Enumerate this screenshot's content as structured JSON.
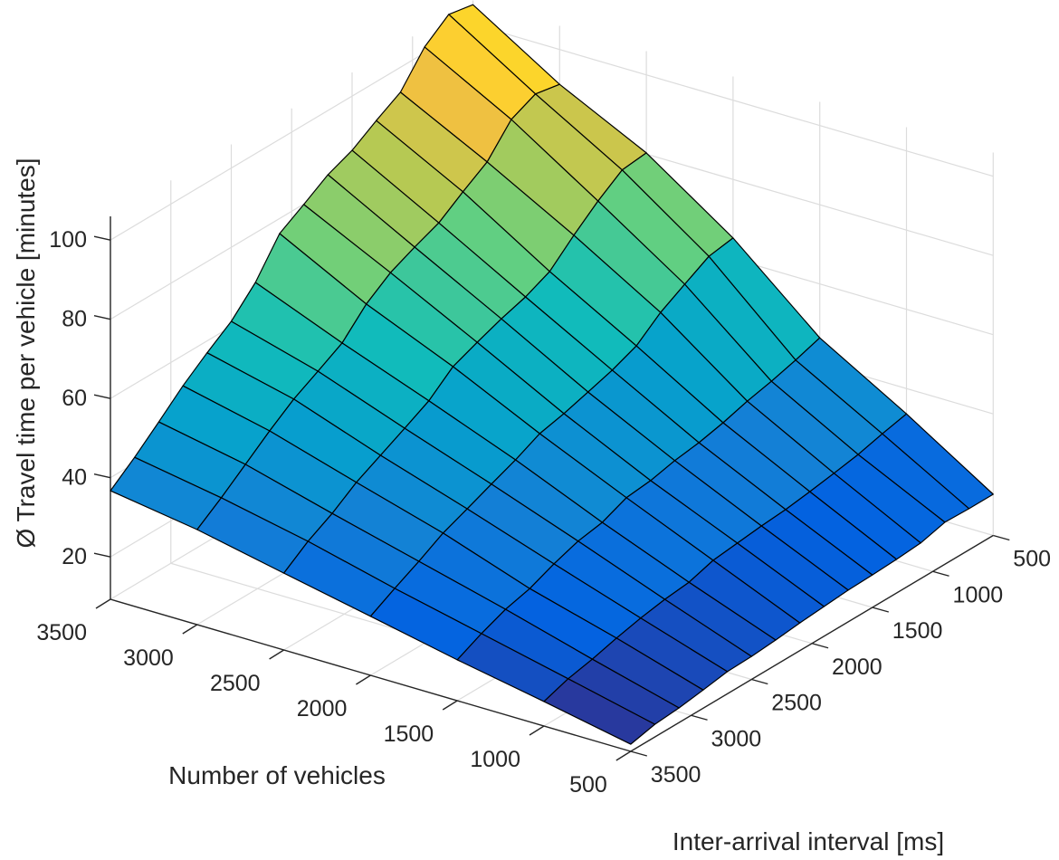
{
  "figure": {
    "zlabel": "Ø Travel time per vehicle [minutes]",
    "xlabel": "Number of vehicles",
    "ylabel": "Inter-arrival interval [ms]"
  },
  "chart_data": {
    "type": "surface",
    "title": "",
    "xlabel": "Number of vehicles",
    "ylabel": "Inter-arrival interval [ms]",
    "zlabel": "Ø Travel time per vehicle [minutes]",
    "x_ticks": [
      500,
      1000,
      1500,
      2000,
      2500,
      3000,
      3500
    ],
    "y_ticks": [
      500,
      1000,
      1500,
      2000,
      2500,
      3000,
      3500
    ],
    "z_ticks": [
      20,
      40,
      60,
      80,
      100
    ],
    "xlim": [
      500,
      3500
    ],
    "ylim": [
      500,
      3500
    ],
    "zlim": [
      9.3,
      106
    ],
    "grid": true,
    "colormap": "parula",
    "vehicles": [
      3500,
      3000,
      2500,
      2000,
      1500,
      1000,
      500
    ],
    "intervals_ms": [
      3500,
      3300,
      3100,
      2900,
      2700,
      2500,
      2300,
      2100,
      1900,
      1700,
      1500,
      1300,
      1100,
      900,
      700,
      500
    ],
    "series": [
      {
        "name": "3500 vehicles",
        "values": [
          36.7,
          41.5,
          46.8,
          52.3,
          57.0,
          61.3,
          67.5,
          76.2,
          79.9,
          83.8,
          86.3,
          90.2,
          93.7,
          101.5,
          106.1,
          104.9
        ]
      },
      {
        "name": "3000 vehicles",
        "values": [
          33.3,
          37.7,
          42.5,
          47.3,
          51.7,
          55.1,
          58.6,
          64.8,
          69.1,
          71.9,
          74.4,
          78.6,
          82.5,
          89.6,
          92.4,
          91.2
        ]
      },
      {
        "name": "2500 vehicles",
        "values": [
          28.7,
          33.1,
          36.5,
          40.7,
          43.9,
          47.1,
          50.4,
          55.4,
          57.9,
          60.2,
          62.1,
          64.9,
          70.4,
          75.4,
          79.6,
          80.3
        ]
      },
      {
        "name": "2000 vehicles",
        "values": [
          24.2,
          27.6,
          30.8,
          34.3,
          36.8,
          39.4,
          41.9,
          44.9,
          46.3,
          48.1,
          50.0,
          52.5,
          57.3,
          60.8,
          64.2,
          65.2
        ]
      },
      {
        "name": "1500 vehicles",
        "values": [
          19.6,
          22.6,
          25.1,
          26.7,
          29.3,
          31.4,
          32.5,
          35.1,
          35.8,
          37.2,
          38.1,
          39.5,
          41.3,
          42.7,
          44.4,
          46.4
        ]
      },
      {
        "name": "1000 vehicles",
        "values": [
          15.5,
          17.6,
          18.9,
          20.6,
          22.0,
          23.1,
          23.8,
          25.7,
          26.4,
          27.1,
          27.6,
          28.5,
          29.5,
          30.6,
          32.2,
          33.6
        ]
      },
      {
        "name": "500 vehicles",
        "values": [
          11.1,
          12.5,
          13.0,
          13.9,
          14.9,
          15.1,
          15.6,
          16.3,
          16.8,
          17.3,
          17.5,
          17.8,
          18.3,
          19.9,
          19.7,
          19.7
        ]
      }
    ]
  }
}
